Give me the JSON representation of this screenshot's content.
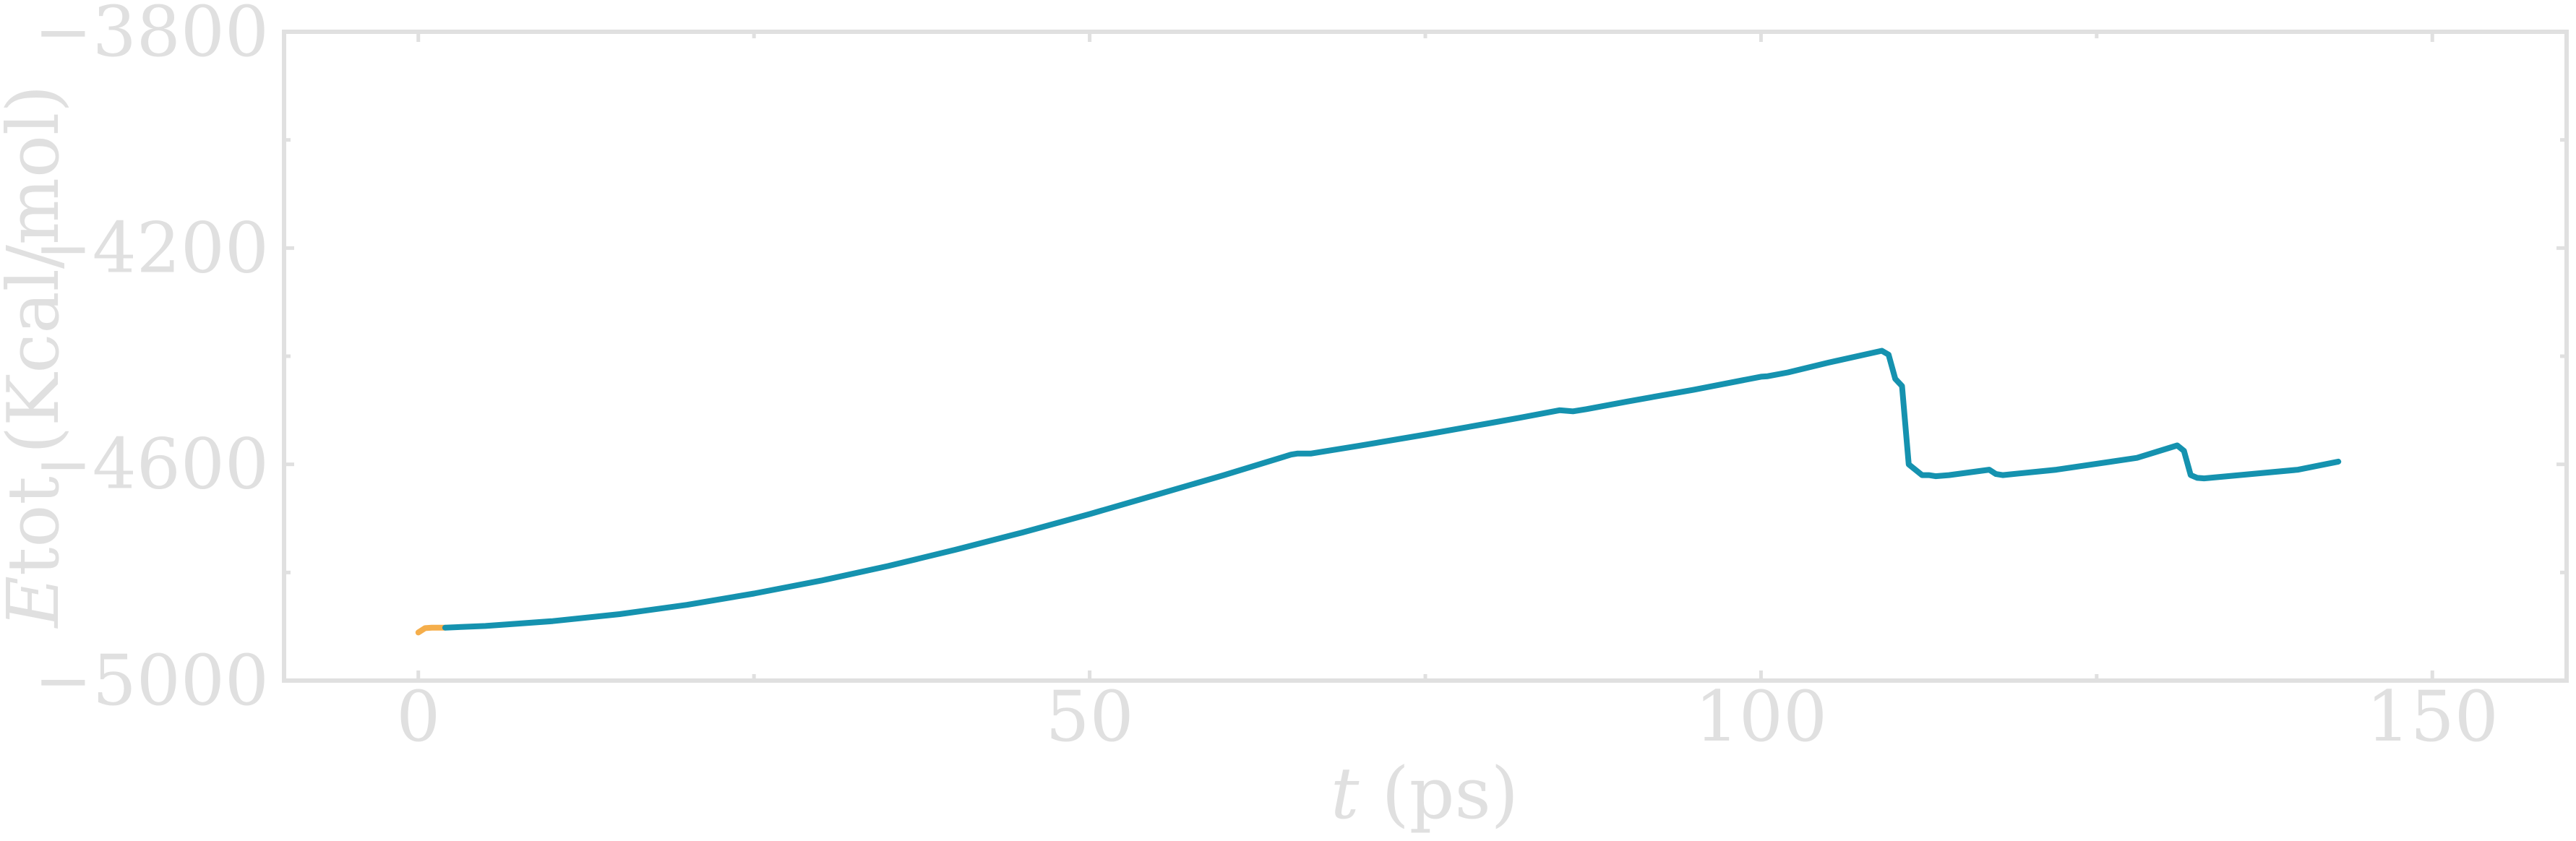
{
  "chart_data": {
    "type": "line",
    "xlabel": "t (ps)",
    "xlabel_italic": "t",
    "xlabel_unit": " (ps)",
    "ylabel": "Etot (Kcal/mol)",
    "ylabel_italic": "E",
    "ylabel_rest": "tot (Kcal/mol)",
    "xlim": [
      -10,
      160
    ],
    "ylim": [
      -5000,
      -3800
    ],
    "x_ticks": [
      0,
      50,
      100,
      150
    ],
    "x_tick_labels": [
      "0",
      "50",
      "100",
      "150"
    ],
    "x_minor_ticks": [
      25,
      75,
      125
    ],
    "y_ticks": [
      -5000,
      -4600,
      -4200,
      -3800
    ],
    "y_tick_labels": [
      "−5000",
      "−4600",
      "−4200",
      "−3800"
    ],
    "y_minor_ticks": [
      -4800,
      -4400,
      -4000
    ],
    "grid": false,
    "series": [
      {
        "color": "#F5AE4B",
        "x": [
          0,
          0.5,
          1,
          1.5,
          2
        ],
        "y": [
          -4911,
          -4903,
          -4902,
          -4902,
          -4902
        ]
      },
      {
        "color": "#1592AF",
        "x": [
          2,
          5,
          10,
          15,
          20,
          25,
          30,
          35,
          40,
          45,
          50,
          55,
          60,
          65,
          65.5,
          66.5,
          70,
          75,
          80,
          82,
          85,
          86,
          87,
          90,
          95,
          100,
          100.5,
          102,
          105,
          109,
          109.5,
          110,
          110.5,
          111,
          112,
          112.5,
          113,
          114,
          117,
          117.5,
          118,
          122,
          128,
          131,
          131.5,
          132,
          132.5,
          133,
          140,
          143
        ],
        "y": [
          -4902,
          -4899,
          -4890,
          -4877,
          -4860,
          -4839,
          -4815,
          -4788,
          -4758,
          -4726,
          -4692,
          -4656,
          -4620,
          -4582,
          -4580,
          -4580,
          -4566,
          -4545,
          -4523,
          -4514,
          -4500,
          -4502,
          -4498,
          -4484,
          -4462,
          -4438,
          -4437,
          -4430,
          -4412,
          -4390,
          -4397,
          -4442,
          -4455,
          -4600,
          -4620,
          -4620,
          -4622,
          -4620,
          -4610,
          -4618,
          -4620,
          -4610,
          -4588,
          -4565,
          -4575,
          -4620,
          -4625,
          -4626,
          -4610,
          -4595
        ]
      }
    ]
  }
}
